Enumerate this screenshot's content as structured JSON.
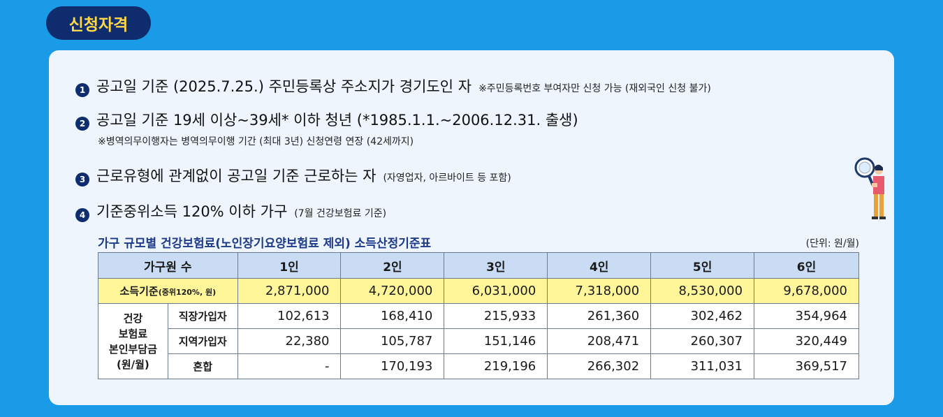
{
  "badge": "신청자격",
  "items": [
    {
      "num": "1",
      "main": "공고일 기준 (2025.7.25.) 주민등록상 주소지가 경기도인 자",
      "note": "※주민등록번호 부여자만 신청 가능 (재외국인 신청 불가)"
    },
    {
      "num": "2",
      "main": "공고일 기준 19세 이상~39세* 이하 청년 (*1985.1.1.~2006.12.31. 출생)",
      "sub": "※병역의무이행자는 병역의무이행 기간 (최대 3년) 신청연령 연장 (42세까지)"
    },
    {
      "num": "3",
      "main": "근로유형에 관계없이 공고일 기준 근로하는 자",
      "note": "(자영업자, 아르바이트 등 포함)"
    },
    {
      "num": "4",
      "main": "기준중위소득 120% 이하 가구",
      "note": "(7월 건강보험료 기준)"
    }
  ],
  "table": {
    "title": "가구 규모별 건강보험료(노인장기요양보험료 제외) 소득산정기준표",
    "unit": "(단위: 원/월)",
    "header_label": "가구원 수",
    "columns": [
      "1인",
      "2인",
      "3인",
      "4인",
      "5인",
      "6인"
    ],
    "income_label": "소득기준",
    "income_label_small": "(중위120%, 원)",
    "income_values": [
      "2,871,000",
      "4,720,000",
      "6,031,000",
      "7,318,000",
      "8,530,000",
      "9,678,000"
    ],
    "category_label": [
      "건강",
      "보험료",
      "본인부담금",
      "(원/월)"
    ],
    "rows": [
      {
        "label": "직장가입자",
        "values": [
          "102,613",
          "168,410",
          "215,933",
          "261,360",
          "302,462",
          "354,964"
        ]
      },
      {
        "label": "지역가입자",
        "values": [
          "22,380",
          "105,787",
          "151,146",
          "208,471",
          "260,307",
          "320,449"
        ]
      },
      {
        "label": "혼합",
        "values": [
          "-",
          "170,193",
          "219,196",
          "266,302",
          "311,031",
          "369,517"
        ]
      }
    ]
  }
}
